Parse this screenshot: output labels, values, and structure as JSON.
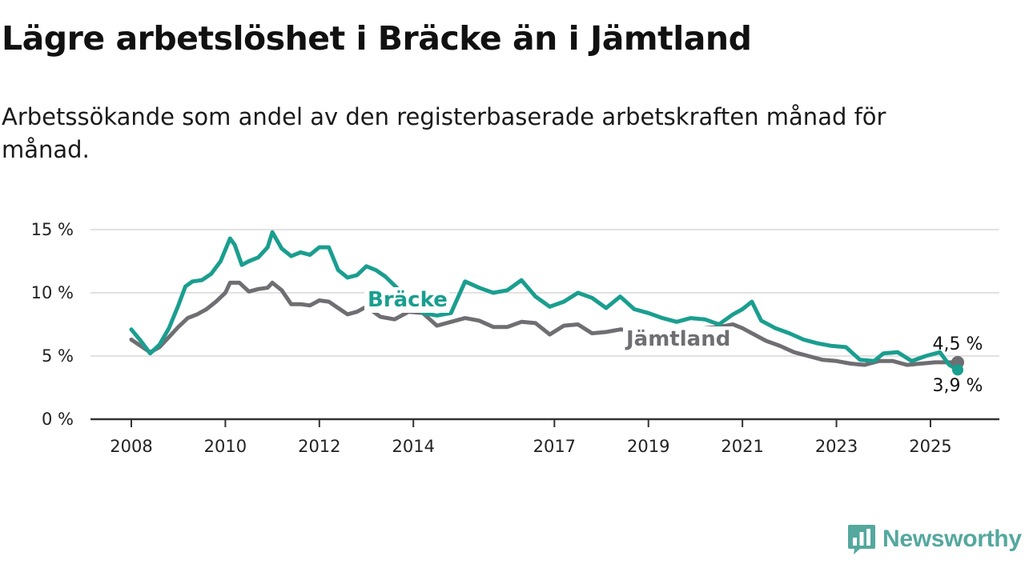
{
  "title": "Lägre arbetslöshet i Bräcke än i Jämtland",
  "subtitle": "Arbetssökande som andel av den registerbaserade arbetskraften månad för månad.",
  "brand": {
    "name": "Newsworthy",
    "color": "#54a89e",
    "icon": "bar-chart-speech-icon"
  },
  "chart_data": {
    "type": "line",
    "title": "Lägre arbetslöshet i Bräcke än i Jämtland",
    "subtitle": "Arbetssökande som andel av den registerbaserade arbetskraften månad för månad.",
    "xlabel": "",
    "ylabel": "",
    "ylim": [
      0,
      15
    ],
    "xlim": [
      2008.0,
      2025.58
    ],
    "y_ticks": [
      0,
      5,
      10,
      15
    ],
    "y_tick_labels": [
      "0 %",
      "5 %",
      "10 %",
      "15 %"
    ],
    "x_ticks": [
      2008,
      2010,
      2012,
      2014,
      2017,
      2019,
      2021,
      2023,
      2025
    ],
    "x_tick_labels": [
      "2008",
      "2010",
      "2012",
      "2014",
      "2017",
      "2019",
      "2021",
      "2023",
      "2025"
    ],
    "grid": "horizontal",
    "legend": "direct labels on lines",
    "series": [
      {
        "name": "Bräcke",
        "color": "#1a9e8f",
        "end_label": "3,9 %",
        "x": [
          2008.0,
          2008.2,
          2008.4,
          2008.6,
          2008.8,
          2009.0,
          2009.15,
          2009.3,
          2009.5,
          2009.7,
          2009.9,
          2010.1,
          2010.2,
          2010.35,
          2010.5,
          2010.7,
          2010.9,
          2011.0,
          2011.2,
          2011.4,
          2011.6,
          2011.8,
          2012.0,
          2012.2,
          2012.4,
          2012.6,
          2012.8,
          2013.0,
          2013.2,
          2013.4,
          2014.2,
          2014.5,
          2014.8,
          2015.1,
          2015.4,
          2015.7,
          2016.0,
          2016.3,
          2016.6,
          2016.9,
          2017.2,
          2017.5,
          2017.8,
          2018.1,
          2018.4,
          2018.7,
          2019.0,
          2019.3,
          2019.6,
          2019.9,
          2020.2,
          2020.5,
          2020.8,
          2021.0,
          2021.2,
          2021.4,
          2021.7,
          2022.0,
          2022.3,
          2022.6,
          2022.9,
          2023.2,
          2023.5,
          2023.8,
          2024.0,
          2024.3,
          2024.6,
          2024.9,
          2025.2,
          2025.4,
          2025.58
        ],
        "y": [
          7.1,
          6.2,
          5.2,
          5.9,
          7.2,
          9.0,
          10.5,
          10.9,
          11.0,
          11.5,
          12.5,
          14.3,
          13.8,
          12.2,
          12.5,
          12.8,
          13.6,
          14.8,
          13.5,
          12.9,
          13.2,
          13.0,
          13.6,
          13.6,
          11.8,
          11.2,
          11.4,
          12.1,
          11.8,
          11.3,
          8.4,
          8.2,
          8.4,
          10.9,
          10.4,
          10.0,
          10.2,
          11.0,
          9.7,
          8.9,
          9.3,
          10.0,
          9.6,
          8.8,
          9.7,
          8.7,
          8.4,
          8.0,
          7.7,
          8.0,
          7.9,
          7.5,
          8.3,
          8.7,
          9.3,
          7.8,
          7.2,
          6.8,
          6.3,
          6.0,
          5.8,
          5.7,
          4.7,
          4.6,
          5.2,
          5.3,
          4.6,
          5.0,
          5.3,
          4.3,
          3.9
        ]
      },
      {
        "name": "Jämtland",
        "color": "#6e6e73",
        "end_label": "4,5 %",
        "x": [
          2008.0,
          2008.2,
          2008.4,
          2008.6,
          2008.8,
          2009.0,
          2009.2,
          2009.4,
          2009.6,
          2009.8,
          2010.0,
          2010.1,
          2010.3,
          2010.5,
          2010.7,
          2010.9,
          2011.0,
          2011.2,
          2011.4,
          2011.6,
          2011.8,
          2012.0,
          2012.2,
          2012.4,
          2012.6,
          2012.8,
          2013.0,
          2013.3,
          2013.6,
          2013.9,
          2014.2,
          2014.5,
          2014.8,
          2015.1,
          2015.4,
          2015.7,
          2016.0,
          2016.3,
          2016.6,
          2016.9,
          2017.2,
          2017.5,
          2017.8,
          2018.1,
          2018.4,
          2018.7,
          2019.0,
          2019.3,
          2019.6,
          2019.9,
          2020.2,
          2020.5,
          2020.8,
          2021.0,
          2021.2,
          2021.5,
          2021.8,
          2022.1,
          2022.4,
          2022.7,
          2023.0,
          2023.3,
          2023.6,
          2023.9,
          2024.2,
          2024.5,
          2024.8,
          2025.1,
          2025.4,
          2025.58
        ],
        "y": [
          6.3,
          5.8,
          5.3,
          5.7,
          6.5,
          7.3,
          8.0,
          8.3,
          8.7,
          9.3,
          10.0,
          10.8,
          10.8,
          10.1,
          10.3,
          10.4,
          10.8,
          10.2,
          9.1,
          9.1,
          9.0,
          9.4,
          9.3,
          8.8,
          8.3,
          8.5,
          8.9,
          8.1,
          7.9,
          8.5,
          8.4,
          7.4,
          7.7,
          8.0,
          7.8,
          7.3,
          7.3,
          7.7,
          7.6,
          6.7,
          7.4,
          7.5,
          6.8,
          6.9,
          7.1,
          7.0,
          6.9,
          6.7,
          7.1,
          7.0,
          7.2,
          7.3,
          7.5,
          7.2,
          6.8,
          6.2,
          5.8,
          5.3,
          5.0,
          4.7,
          4.6,
          4.4,
          4.3,
          4.6,
          4.6,
          4.3,
          4.4,
          4.5,
          4.5,
          4.5
        ]
      }
    ]
  }
}
